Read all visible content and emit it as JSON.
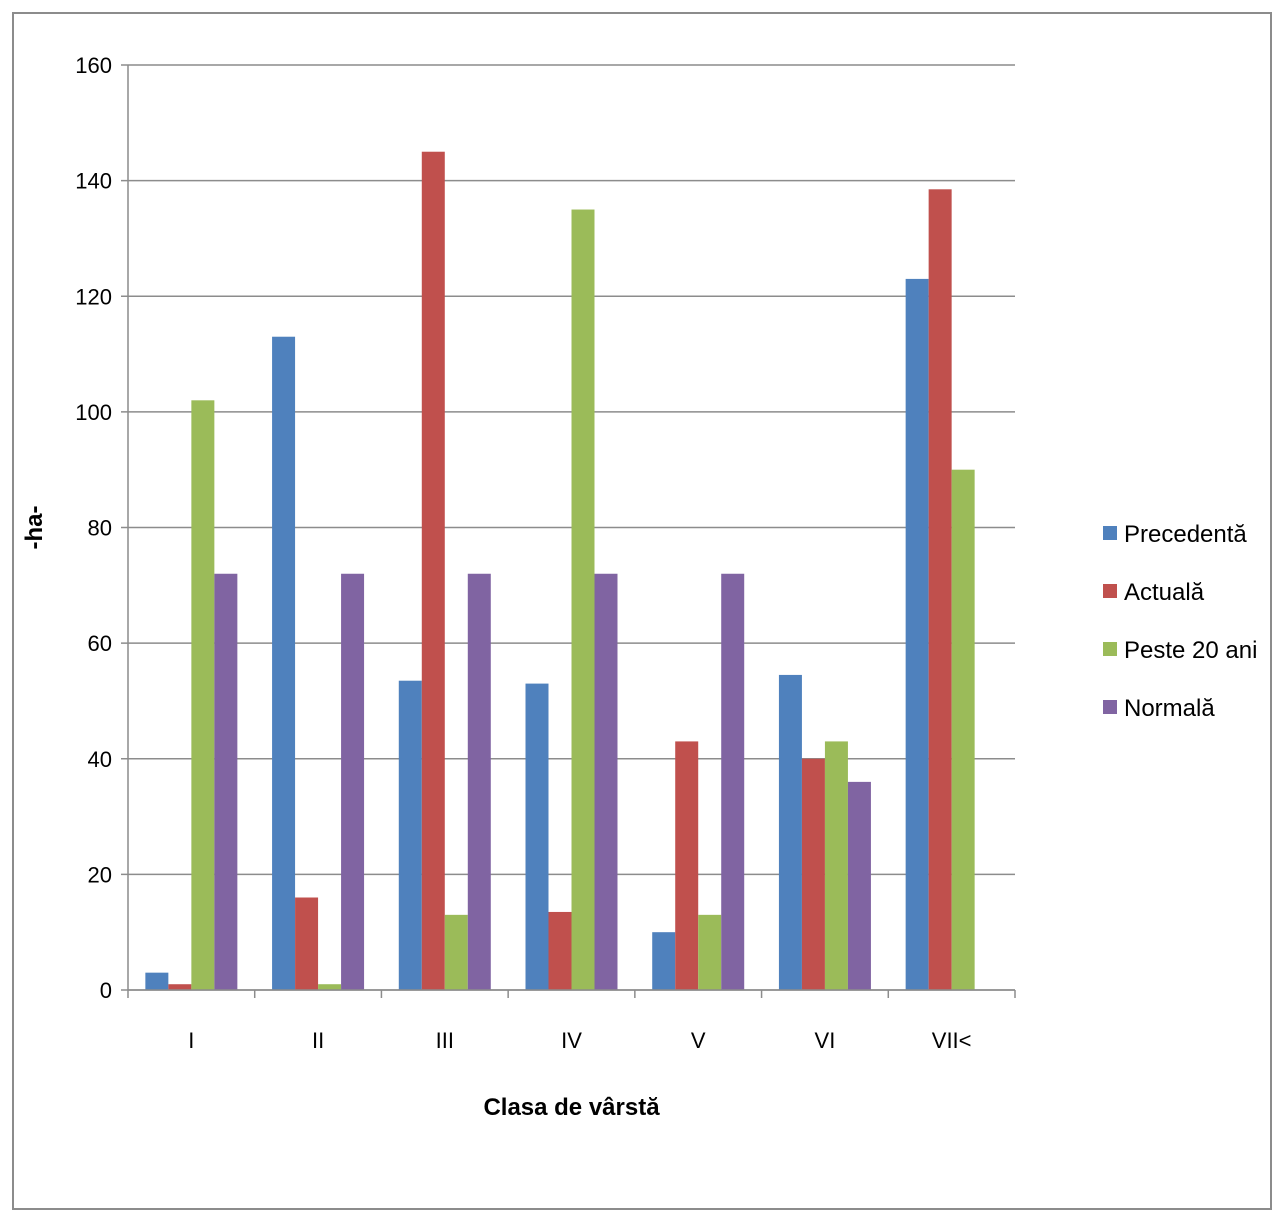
{
  "chart_data": {
    "type": "bar",
    "title": "",
    "xlabel": "Clasa de vârstă",
    "ylabel": "-ha-",
    "categories": [
      "I",
      "II",
      "III",
      "IV",
      "V",
      "VI",
      "VII<"
    ],
    "ylim": [
      0,
      160
    ],
    "yticks": [
      0,
      20,
      40,
      60,
      80,
      100,
      120,
      140,
      160
    ],
    "grid": true,
    "legend_position": "right",
    "series": [
      {
        "name": "Precedentă",
        "color": "#4F81BD",
        "values": [
          3,
          113,
          53.5,
          53,
          10,
          54.5,
          123
        ]
      },
      {
        "name": "Actuală",
        "color": "#C0504D",
        "values": [
          1,
          16,
          145,
          13.5,
          43,
          40,
          138.5
        ]
      },
      {
        "name": "Peste 20 ani",
        "color": "#9BBB59",
        "values": [
          102,
          1,
          13,
          135,
          13,
          43,
          90
        ]
      },
      {
        "name": "Normală",
        "color": "#8064A2",
        "values": [
          72,
          72,
          72,
          72,
          72,
          36,
          null
        ]
      }
    ]
  }
}
